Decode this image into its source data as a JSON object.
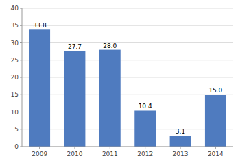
{
  "chart_data": {
    "type": "bar",
    "categories": [
      "2009",
      "2010",
      "2011",
      "2012",
      "2013",
      "2014"
    ],
    "values": [
      33.8,
      27.7,
      28.0,
      10.4,
      3.1,
      15.0
    ],
    "value_labels": [
      "33.8",
      "27.7",
      "28.0",
      "10.4",
      "3.1",
      "15.0"
    ],
    "color": "#4f7bbf",
    "ylim": [
      0,
      40
    ],
    "yticks": [
      0,
      5,
      10,
      15,
      20,
      25,
      30,
      35,
      40
    ],
    "grid": true,
    "data_labels": true
  }
}
